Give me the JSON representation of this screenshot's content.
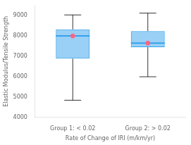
{
  "chart_data": {
    "type": "box",
    "categories": [
      "Group 1: < 0.02",
      "Group 2: > 0.02"
    ],
    "boxes": [
      {
        "whislo": 4844,
        "q1": 6889,
        "med": 8002,
        "q3": 8324,
        "whishi": 9036,
        "mean": 8002
      },
      {
        "whislo": 5998,
        "q1": 7449,
        "med": 7649,
        "q3": 8237,
        "whishi": 9124,
        "mean": 7649
      }
    ],
    "xlabel": "Rate of Change of IRI (m/km/yr)",
    "ylabel": "Elastic Modulus/Tensile Strength",
    "ylim": [
      4000,
      9500
    ],
    "yticks": [
      4000,
      5000,
      6000,
      7000,
      8000,
      9000
    ],
    "grid": false
  }
}
